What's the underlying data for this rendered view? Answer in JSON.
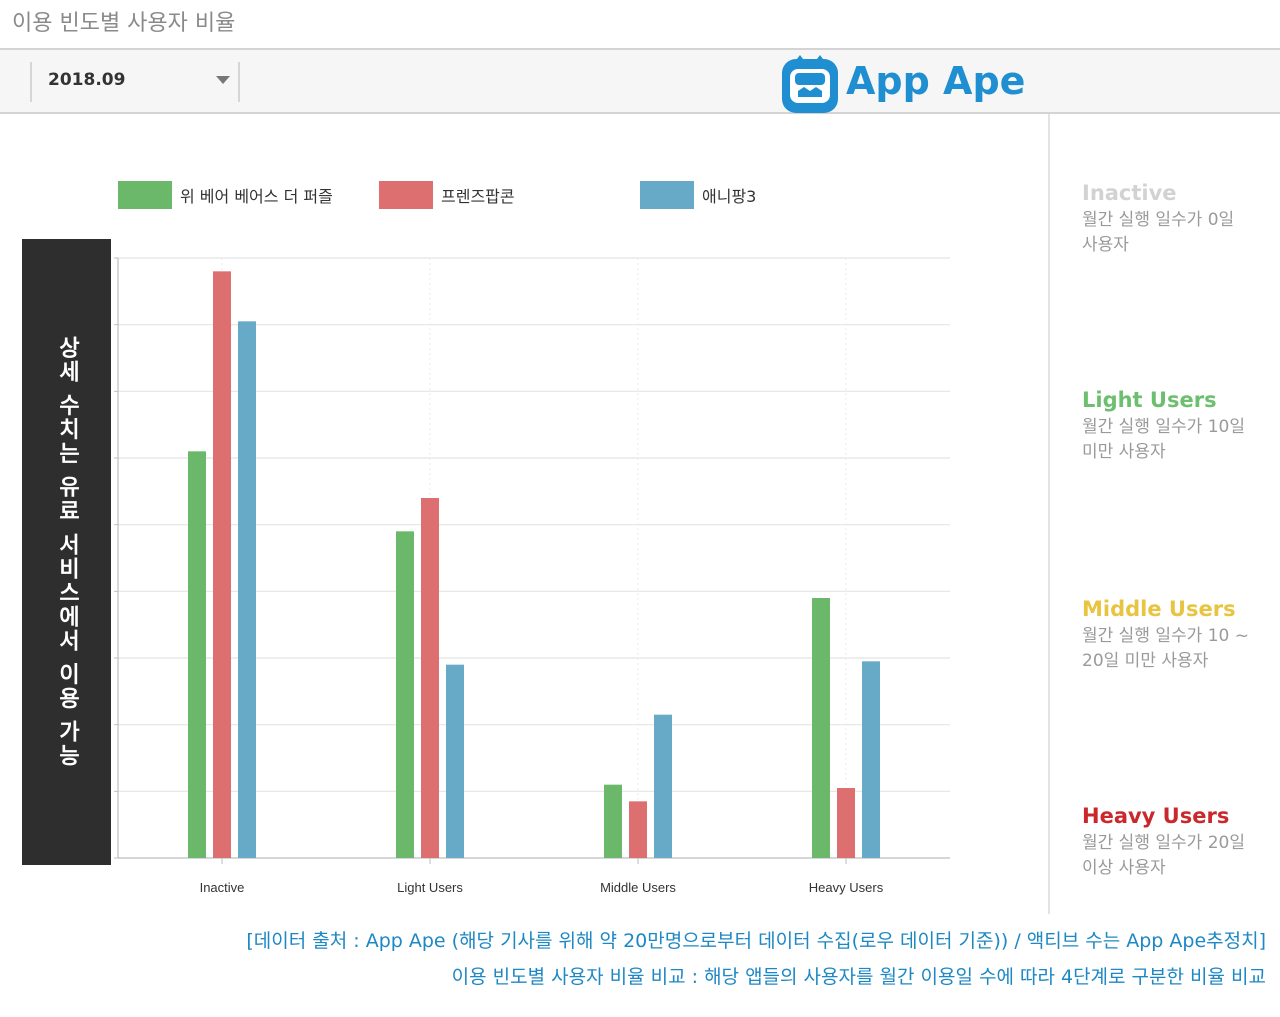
{
  "page_title": "이용 빈도별 사용자 비율",
  "toolbar": {
    "date_value": "2018.09",
    "dropdown_icon": "chevron-down-icon"
  },
  "brand": {
    "logo_icon": "monkey-logo-icon",
    "name": "App Ape",
    "color": "#1f8fd1"
  },
  "side_banner": {
    "text": "상세 수치는 유료 서비스에서 이용 가능"
  },
  "segments": [
    {
      "title": "Inactive",
      "desc_line1": "월간 실행 일수가 0일",
      "desc_line2": "사용자",
      "color": "#d2d2d2"
    },
    {
      "title": "Light Users",
      "desc_line1": "월간 실행 일수가 10일",
      "desc_line2": "미만 사용자",
      "color": "#6dbf6f"
    },
    {
      "title": "Middle Users",
      "desc_line1": "월간 실행 일수가 10 ~",
      "desc_line2": "20일 미만 사용자",
      "color": "#e8c440"
    },
    {
      "title": "Heavy Users",
      "desc_line1": "월간 실행 일수가 20일",
      "desc_line2": "이상 사용자",
      "color": "#c9282d"
    }
  ],
  "captions": {
    "line1": "[데이터 출처 : App Ape (해당 기사를 위해 약 20만명으로부터 데이터 수집(로우 데이터 기준)) / 액티브 수는 App Ape추정치]",
    "line2": "이용 빈도별 사용자 비율 비교 : 해당 앱들의 사용자를 월간 이용일 수에 따라 4단계로 구분한 비율 비교"
  },
  "chart_data": {
    "type": "bar",
    "categories": [
      "Inactive",
      "Light Users",
      "Middle Users",
      "Heavy Users"
    ],
    "series": [
      {
        "name": "위 베어 베어스 더 퍼즐",
        "color": "#6bb86b",
        "values": [
          6.1,
          4.9,
          1.1,
          3.9
        ]
      },
      {
        "name": "프렌즈팝콘",
        "color": "#de6f70",
        "values": [
          8.8,
          5.4,
          0.85,
          1.05
        ]
      },
      {
        "name": "애니팡3",
        "color": "#66aac8",
        "values": [
          8.05,
          2.9,
          2.15,
          2.95
        ]
      }
    ],
    "ylim": [
      0,
      9
    ],
    "y_ticks": [
      0,
      1,
      2,
      3,
      4,
      5,
      6,
      7,
      8,
      9
    ],
    "y_tick_labels_shown": false,
    "grid": true,
    "legend_position": "top",
    "xlabel": "",
    "ylabel": ""
  }
}
